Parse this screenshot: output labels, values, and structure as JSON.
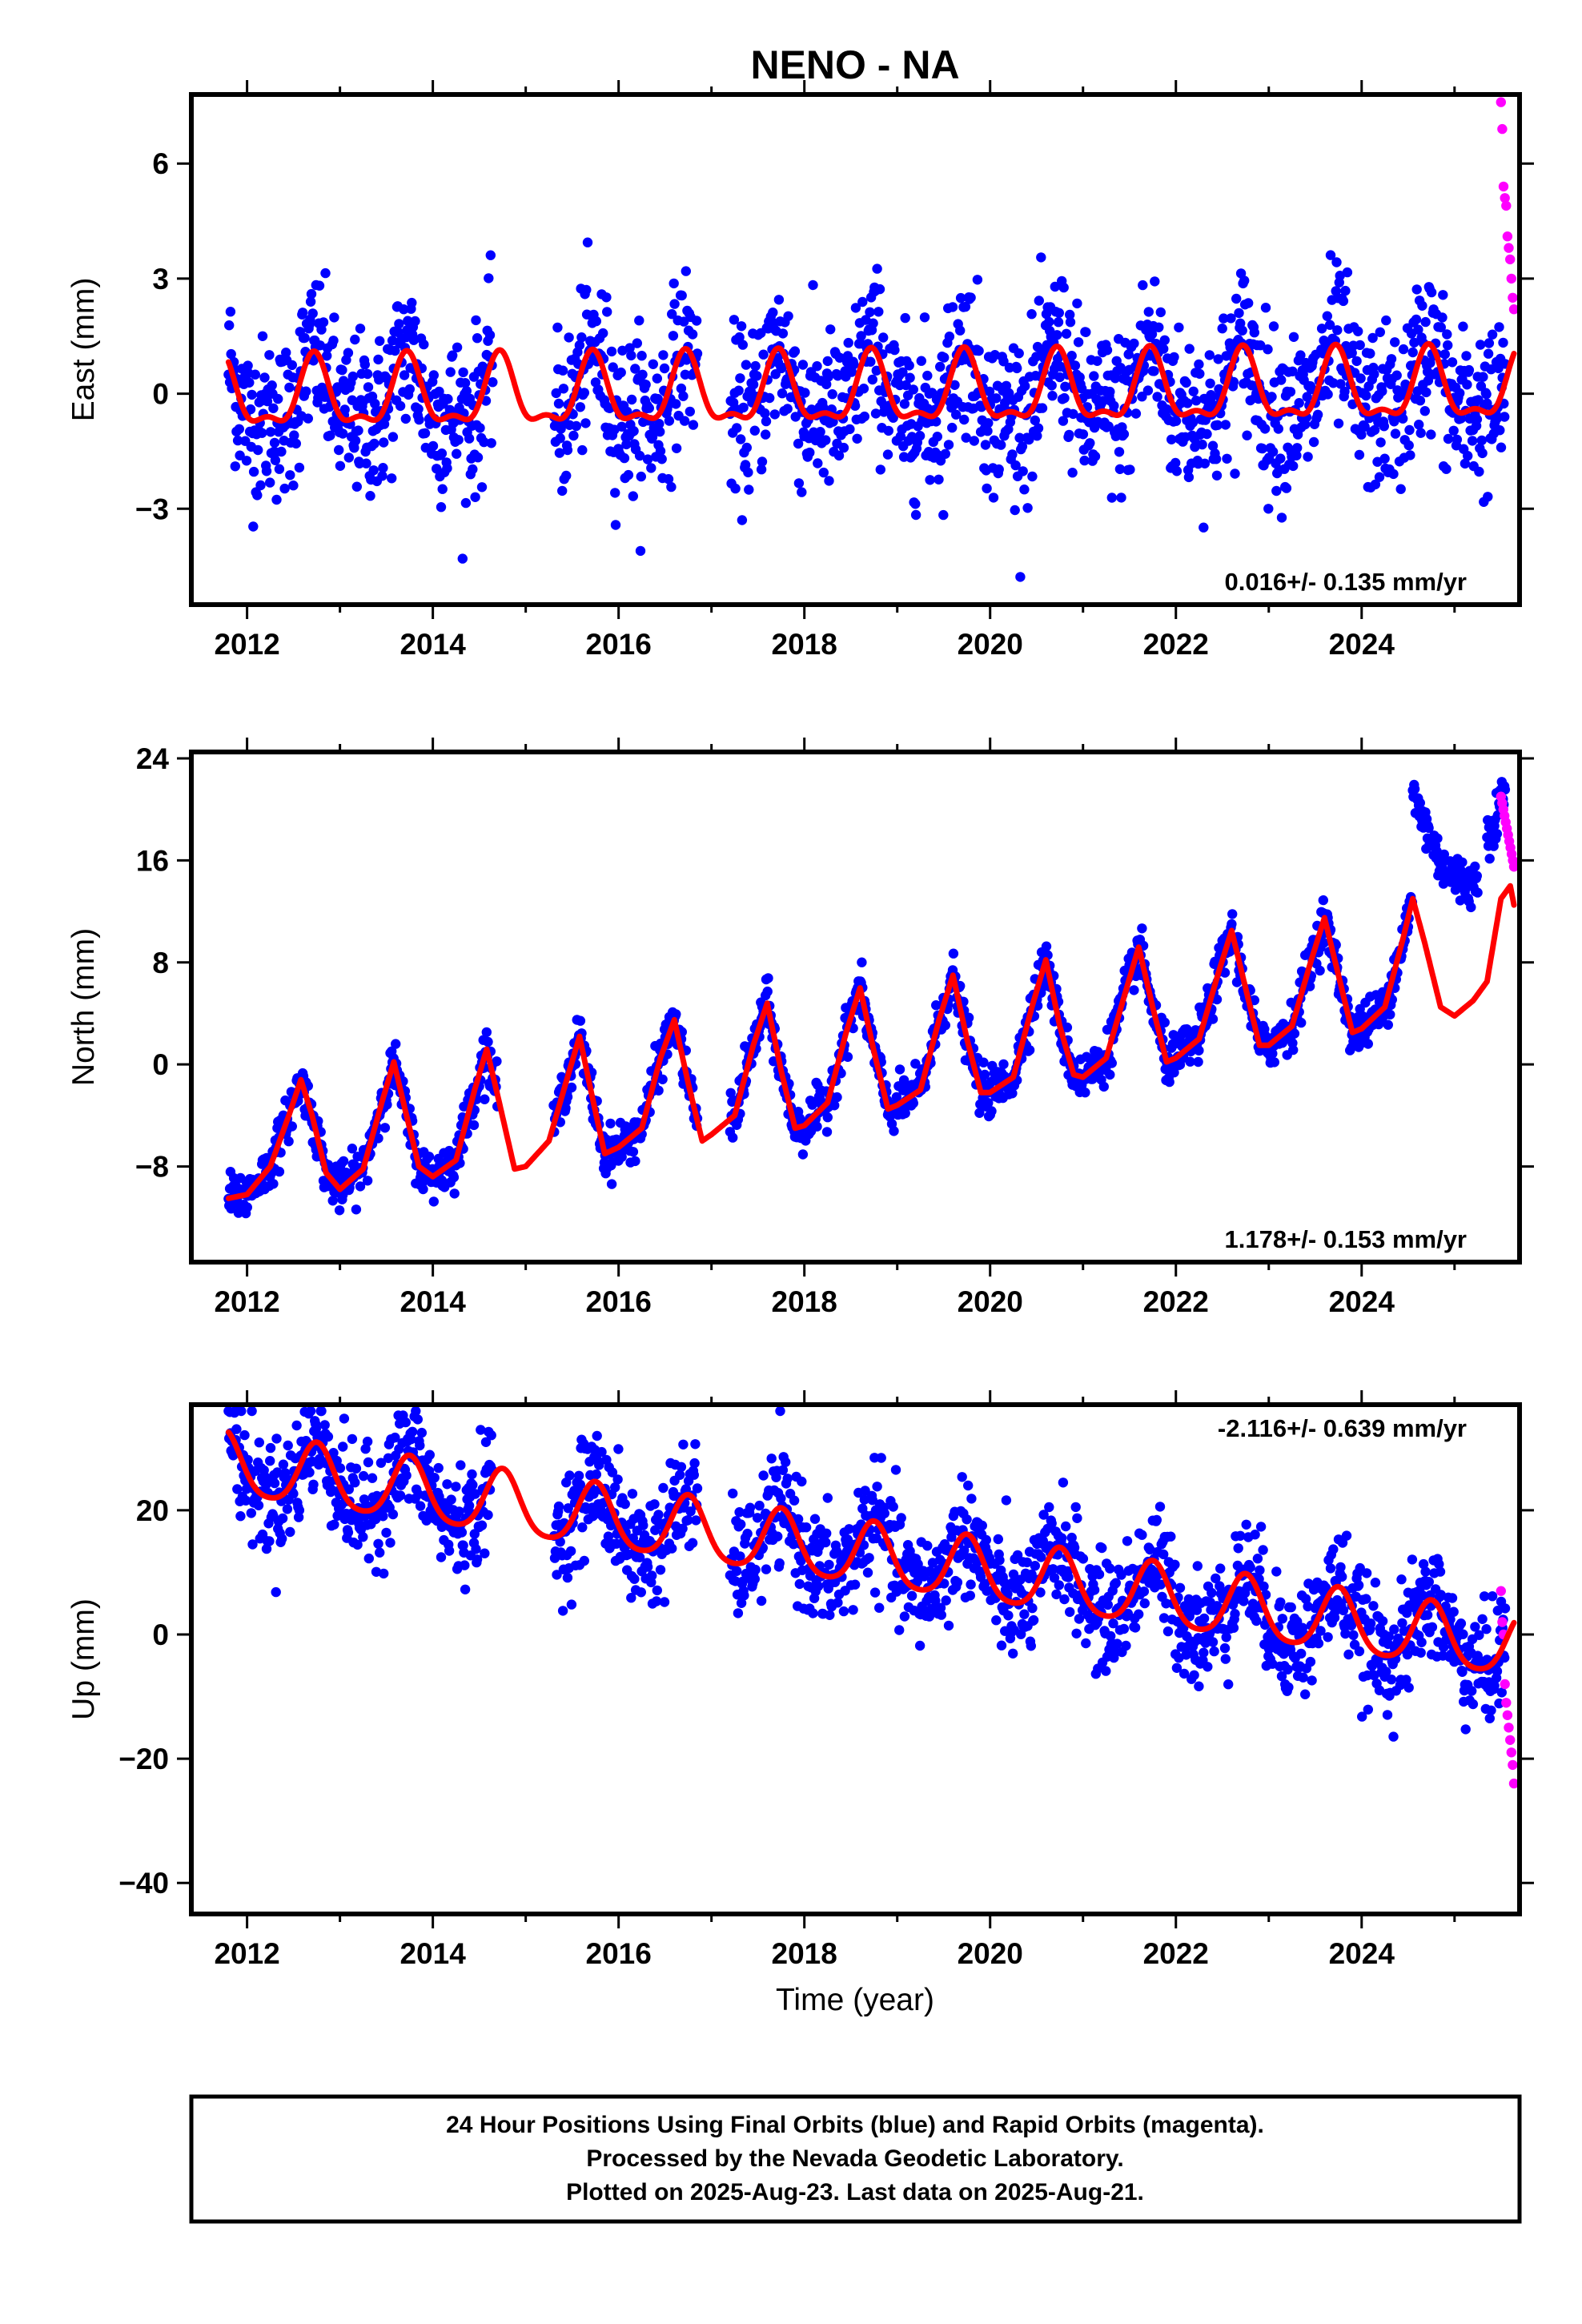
{
  "title": "NENO - NA",
  "colors": {
    "final": "#0000ff",
    "rapid": "#ff00ff",
    "fit": "#ff0000",
    "frame": "#000000"
  },
  "xlabel": "Time (year)",
  "notes": [
    "24 Hour Positions Using Final Orbits (blue) and Rapid Orbits (magenta).",
    "Processed by the Nevada Geodetic Laboratory.",
    "Plotted on 2025-Aug-23. Last data on 2025-Aug-21."
  ],
  "chart_data": [
    {
      "type": "scatter",
      "component": "east",
      "ylabel": "East (mm)",
      "rate_label": "0.016+/- 0.135 mm/yr",
      "xlim": [
        2011.4,
        2025.7
      ],
      "ylim": [
        -5.5,
        7.8
      ],
      "xticks": [
        2012,
        2014,
        2016,
        2018,
        2020,
        2022,
        2024
      ],
      "xtick_labels": [
        "2012",
        "2014",
        "2016",
        "2018",
        "2020",
        "2022",
        "2024"
      ],
      "yticks": [
        -3,
        0,
        3,
        6
      ],
      "ytick_labels": [
        "−3",
        "0",
        "3",
        "6"
      ],
      "fit": {
        "offset": 0.0,
        "trend_mm_per_yr": 0.016,
        "annual_amplitude": 0.85,
        "annual_peak_year_fraction": 0.72,
        "semiannual_amplitude": 0.35
      },
      "scatter": {
        "start": 2011.8,
        "end": 2025.55,
        "sd": 1.05,
        "gaps": [
          [
            2014.65,
            2015.3
          ],
          [
            2016.85,
            2017.2
          ]
        ]
      },
      "rapid": {
        "start": 2025.5,
        "end": 2025.64,
        "values": [
          7.6,
          6.9,
          5.4,
          5.1,
          4.9,
          4.1,
          3.8,
          3.5,
          3.0,
          2.5,
          2.2
        ]
      }
    },
    {
      "type": "scatter",
      "component": "north",
      "ylabel": "North (mm)",
      "rate_label": "1.178+/- 0.153 mm/yr",
      "xlim": [
        2011.4,
        2025.7
      ],
      "ylim": [
        -15.5,
        24.5
      ],
      "xticks": [
        2012,
        2014,
        2016,
        2018,
        2020,
        2022,
        2024
      ],
      "xtick_labels": [
        "2012",
        "2014",
        "2016",
        "2018",
        "2020",
        "2022",
        "2024"
      ],
      "yticks": [
        -8,
        0,
        8,
        16,
        24
      ],
      "ytick_labels": [
        "−8",
        "0",
        "8",
        "16",
        "24"
      ],
      "fit_points": [
        [
          2011.8,
          -10.5
        ],
        [
          2012.0,
          -10.2
        ],
        [
          2012.25,
          -8.0
        ],
        [
          2012.45,
          -4.0
        ],
        [
          2012.58,
          -1.2
        ],
        [
          2012.7,
          -4.0
        ],
        [
          2012.85,
          -8.5
        ],
        [
          2013.0,
          -9.8
        ],
        [
          2013.25,
          -8.2
        ],
        [
          2013.45,
          -3.0
        ],
        [
          2013.58,
          0.2
        ],
        [
          2013.7,
          -3.5
        ],
        [
          2013.85,
          -8.0
        ],
        [
          2014.0,
          -8.8
        ],
        [
          2014.25,
          -7.5
        ],
        [
          2014.45,
          -2.0
        ],
        [
          2014.58,
          1.2
        ],
        [
          2014.7,
          -2.5
        ],
        [
          2014.88,
          -8.2
        ],
        [
          2015.0,
          -8.0
        ],
        [
          2015.25,
          -6.0
        ],
        [
          2015.45,
          -1.0
        ],
        [
          2015.58,
          2.2
        ],
        [
          2015.7,
          -2.0
        ],
        [
          2015.85,
          -7.0
        ],
        [
          2016.0,
          -6.5
        ],
        [
          2016.25,
          -5.0
        ],
        [
          2016.45,
          0.5
        ],
        [
          2016.6,
          3.5
        ],
        [
          2016.75,
          -1.5
        ],
        [
          2016.9,
          -6.0
        ],
        [
          2017.0,
          -5.5
        ],
        [
          2017.25,
          -4.0
        ],
        [
          2017.45,
          1.5
        ],
        [
          2017.6,
          4.8
        ],
        [
          2017.75,
          -0.5
        ],
        [
          2017.9,
          -5.0
        ],
        [
          2018.0,
          -4.8
        ],
        [
          2018.25,
          -3.0
        ],
        [
          2018.45,
          2.5
        ],
        [
          2018.6,
          6.0
        ],
        [
          2018.75,
          1.0
        ],
        [
          2018.9,
          -3.5
        ],
        [
          2019.0,
          -3.2
        ],
        [
          2019.25,
          -2.0
        ],
        [
          2019.45,
          3.5
        ],
        [
          2019.6,
          7.0
        ],
        [
          2019.75,
          2.0
        ],
        [
          2019.9,
          -2.2
        ],
        [
          2020.0,
          -2.2
        ],
        [
          2020.25,
          -1.0
        ],
        [
          2020.45,
          4.5
        ],
        [
          2020.6,
          8.2
        ],
        [
          2020.75,
          3.0
        ],
        [
          2020.9,
          -0.8
        ],
        [
          2021.0,
          -1.0
        ],
        [
          2021.25,
          0.5
        ],
        [
          2021.45,
          5.5
        ],
        [
          2021.6,
          9.2
        ],
        [
          2021.75,
          4.5
        ],
        [
          2021.9,
          0.2
        ],
        [
          2022.0,
          0.5
        ],
        [
          2022.25,
          2.0
        ],
        [
          2022.45,
          7.0
        ],
        [
          2022.6,
          10.5
        ],
        [
          2022.75,
          6.0
        ],
        [
          2022.9,
          1.5
        ],
        [
          2023.0,
          1.5
        ],
        [
          2023.25,
          3.0
        ],
        [
          2023.45,
          8.0
        ],
        [
          2023.6,
          11.5
        ],
        [
          2023.75,
          7.0
        ],
        [
          2023.9,
          2.5
        ],
        [
          2024.0,
          2.8
        ],
        [
          2024.25,
          4.5
        ],
        [
          2024.45,
          10.0
        ],
        [
          2024.55,
          13.0
        ],
        [
          2024.68,
          9.5
        ],
        [
          2024.85,
          4.5
        ],
        [
          2025.0,
          3.8
        ],
        [
          2025.2,
          5.0
        ],
        [
          2025.35,
          6.5
        ],
        [
          2025.5,
          13.0
        ],
        [
          2025.6,
          14.0
        ],
        [
          2025.64,
          12.5
        ]
      ],
      "scatter": {
        "sd": 0.9,
        "segments": [
          {
            "from": 2011.8,
            "to": 2014.7
          },
          {
            "from": 2015.3,
            "to": 2016.85
          },
          {
            "from": 2017.2,
            "to": 2024.55
          },
          {
            "from": 2024.55,
            "to": 2025.25,
            "points": [
              [
                2024.55,
                21.0
              ],
              [
                2024.62,
                20.0
              ],
              [
                2024.7,
                18.5
              ],
              [
                2024.78,
                17.0
              ],
              [
                2024.85,
                16.0
              ],
              [
                2024.95,
                15.0
              ],
              [
                2025.05,
                14.5
              ],
              [
                2025.15,
                14.0
              ],
              [
                2025.25,
                14.5
              ]
            ]
          },
          {
            "from": 2025.35,
            "to": 2025.55,
            "points": [
              [
                2025.35,
                18.0
              ],
              [
                2025.45,
                19.5
              ],
              [
                2025.55,
                22.0
              ]
            ]
          }
        ]
      },
      "rapid": {
        "start": 2025.5,
        "end": 2025.64,
        "values": [
          21.0,
          20.5,
          20.0,
          19.5,
          19.0,
          18.5,
          18.0,
          17.5,
          17.0,
          16.5,
          16.0,
          15.5
        ]
      }
    },
    {
      "type": "scatter",
      "component": "up",
      "ylabel": "Up (mm)",
      "rate_label": "-2.116+/- 0.639 mm/yr",
      "xlim": [
        2011.4,
        2025.7
      ],
      "ylim": [
        -45,
        37
      ],
      "xticks": [
        2012,
        2014,
        2016,
        2018,
        2020,
        2022,
        2024
      ],
      "xtick_labels": [
        "2012",
        "2014",
        "2016",
        "2018",
        "2020",
        "2022",
        "2024"
      ],
      "yticks": [
        -40,
        -20,
        0,
        20
      ],
      "ytick_labels": [
        "−40",
        "−20",
        "0",
        "20"
      ],
      "fit": {
        "offset": 13.0,
        "trend_mm_per_yr": -2.116,
        "annual_amplitude": 5.0,
        "annual_peak_year_fraction": 0.75,
        "semiannual_amplitude": 0.8
      },
      "scatter": {
        "start": 2011.8,
        "end": 2025.55,
        "sd": 4.5,
        "gaps": [
          [
            2014.65,
            2015.3
          ],
          [
            2016.85,
            2017.2
          ]
        ]
      },
      "rapid": {
        "start": 2025.5,
        "end": 2025.64,
        "values": [
          7.0,
          2.0,
          0.0,
          -8.0,
          -11.0,
          -13.0,
          -15.0,
          -17.0,
          -19.0,
          -21.0,
          -24.0
        ]
      }
    }
  ]
}
